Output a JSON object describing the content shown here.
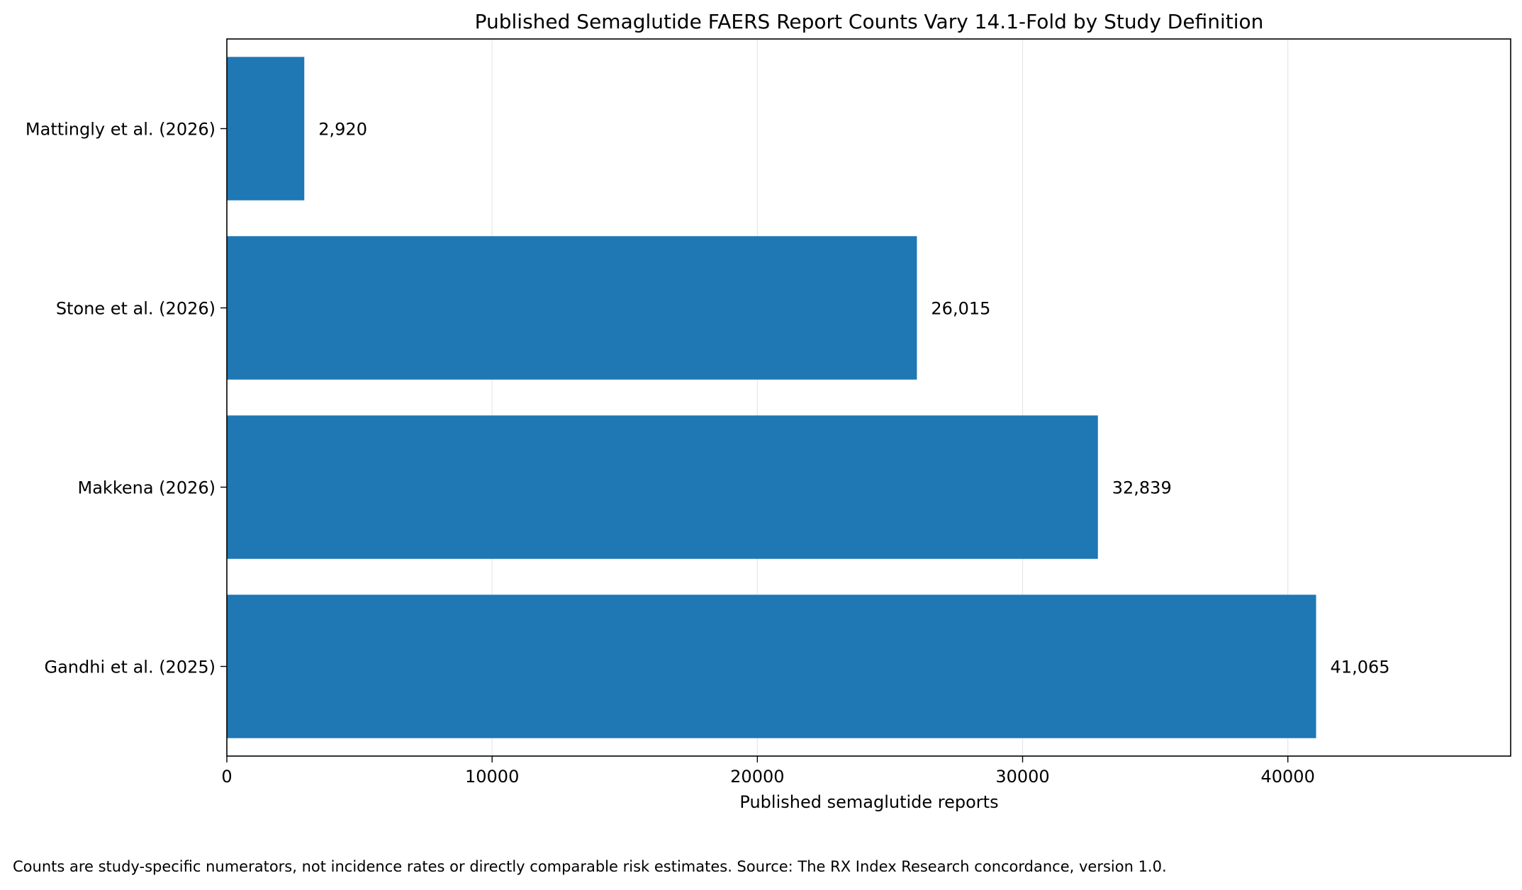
{
  "chart_data": {
    "type": "bar",
    "orientation": "horizontal",
    "title": "Published Semaglutide FAERS Report Counts Vary 14.1-Fold by Study Definition",
    "xlabel": "Published semaglutide reports",
    "ylabel": "",
    "categories": [
      "Gandhi et al. (2025)",
      "Makkena (2026)",
      "Stone et al. (2026)",
      "Mattingly et al. (2026)"
    ],
    "values": [
      41065,
      32839,
      26015,
      2920
    ],
    "value_labels": [
      "41,065",
      "32,839",
      "26,015",
      "2,920"
    ],
    "xlim": [
      0,
      48400
    ],
    "xticks": [
      0,
      10000,
      20000,
      30000,
      40000
    ],
    "xtick_labels": [
      "0",
      "10000",
      "20000",
      "30000",
      "40000"
    ],
    "grid": "vertical",
    "bar_color": "#1f77b4",
    "grid_color": "#e6e6e6",
    "footnote": "Counts are study-specific numerators, not incidence rates or directly comparable risk estimates. Source: The RX Index Research concordance, version 1.0."
  }
}
